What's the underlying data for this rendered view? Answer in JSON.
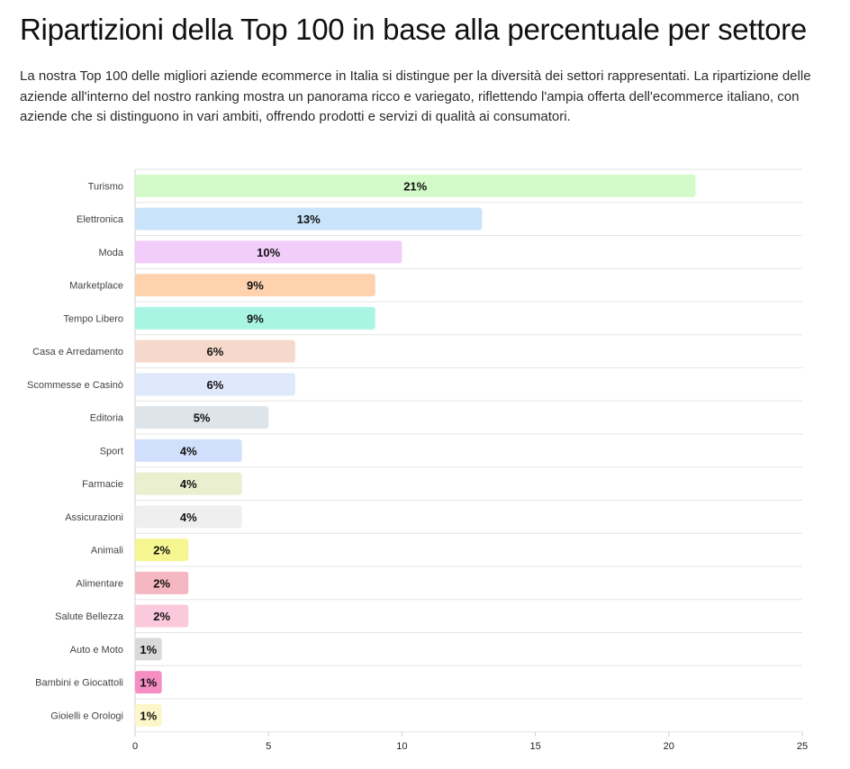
{
  "page": {
    "title": "Ripartizioni della Top 100 in base alla percentuale per settore",
    "intro": "La nostra Top 100 delle migliori aziende ecommerce in Italia si distingue per la diversità dei settori rappresentati. La ripartizione delle aziende all'interno del nostro ranking mostra un panorama ricco e variegato, riflettendo l'ampia offerta dell'ecommerce italiano, con aziende che si distinguono in vari ambiti, offrendo prodotti e servizi di qualità ai consumatori."
  },
  "chart_data": {
    "type": "bar",
    "orientation": "horizontal",
    "title": "",
    "xlabel": "",
    "ylabel": "",
    "xlim": [
      0,
      25
    ],
    "x_ticks": [
      0,
      5,
      10,
      15,
      20,
      25
    ],
    "grid": true,
    "legend": "none",
    "categories": [
      "Turismo",
      "Elettronica",
      "Moda",
      "Marketplace",
      "Tempo Libero",
      "Casa e Arredamento",
      "Scommesse e Casinò",
      "Editoria",
      "Sport",
      "Farmacie",
      "Assicurazioni",
      "Animali",
      "Alimentare",
      "Salute Bellezza",
      "Auto e Moto",
      "Bambini e Giocattoli",
      "Gioielli e Orologi"
    ],
    "values": [
      21,
      13,
      10,
      9,
      9,
      6,
      6,
      5,
      4,
      4,
      4,
      2,
      2,
      2,
      1,
      1,
      1
    ],
    "data_labels": [
      "21%",
      "13%",
      "10%",
      "9%",
      "9%",
      "6%",
      "6%",
      "5%",
      "4%",
      "4%",
      "4%",
      "2%",
      "2%",
      "2%",
      "1%",
      "1%",
      "1%"
    ],
    "colors": [
      "#d2fbc9",
      "#c9e3fb",
      "#f2cdfb",
      "#fdd2ad",
      "#a9f5e3",
      "#f7d9cc",
      "#e0e8fb",
      "#dde4ea",
      "#d0dffb",
      "#eaefcf",
      "#efefef",
      "#f6f691",
      "#f5b7c1",
      "#fbc9db",
      "#d9d9d9",
      "#f58ec3",
      "#fcf6c9"
    ]
  }
}
